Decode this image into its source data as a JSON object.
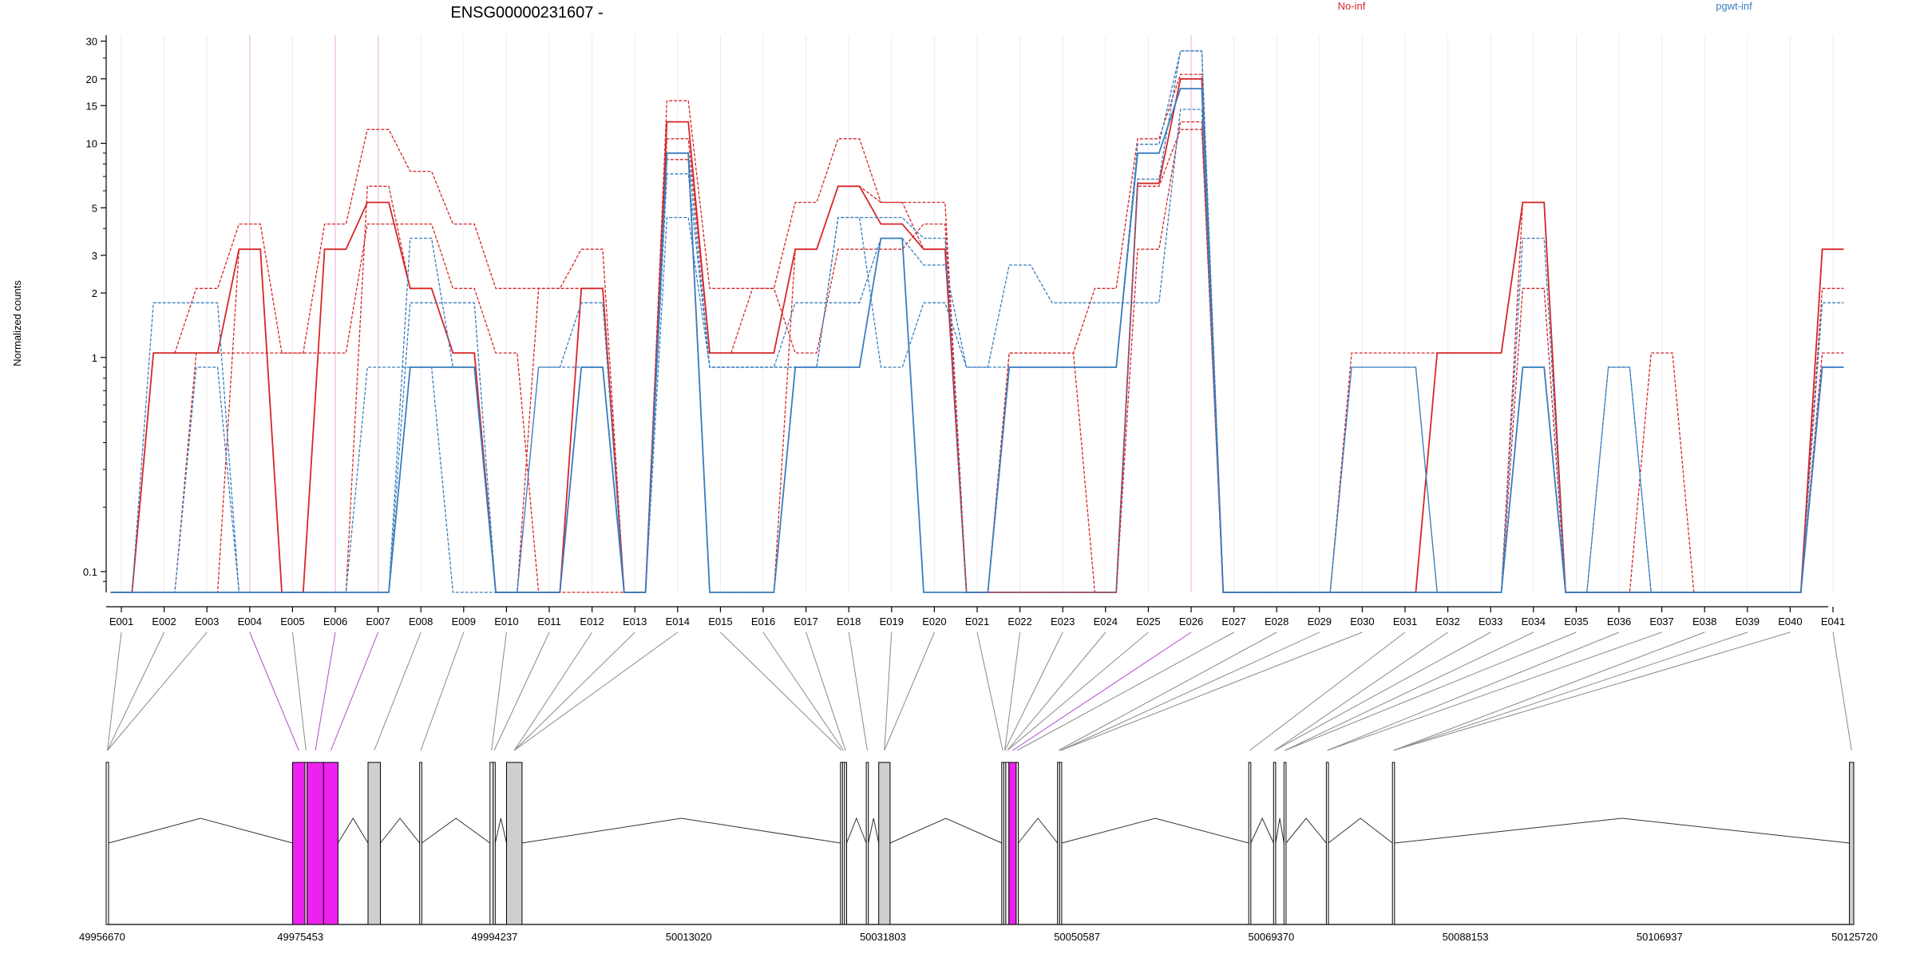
{
  "chart_data": {
    "type": "line",
    "title": "ENSG00000231607 -",
    "ylabel": "Normalized counts",
    "yscale": "log",
    "ylim": [
      0.08,
      32
    ],
    "yticks": [
      0.1,
      1,
      2,
      3,
      5,
      10,
      15,
      20,
      30
    ],
    "legend": [
      {
        "name": "No-inf",
        "color": "#d62728",
        "placement": "top-right"
      },
      {
        "name": "pgwt-inf",
        "color": "#3a7ebf",
        "placement": "top-right"
      }
    ],
    "categories": [
      "E001",
      "E002",
      "E003",
      "E004",
      "E005",
      "E006",
      "E007",
      "E008",
      "E009",
      "E010",
      "E011",
      "E012",
      "E013",
      "E014",
      "E015",
      "E016",
      "E017",
      "E018",
      "E019",
      "E020",
      "E021",
      "E022",
      "E023",
      "E024",
      "E025",
      "E026",
      "E027",
      "E028",
      "E029",
      "E030",
      "E031",
      "E032",
      "E033",
      "E034",
      "E035",
      "E036",
      "E037",
      "E038",
      "E039",
      "E040",
      "E041"
    ],
    "series": [
      {
        "group": "No-inf",
        "style": "solid",
        "values": [
          0.08,
          1.05,
          1.05,
          3.2,
          0.08,
          3.2,
          5.3,
          2.1,
          1.05,
          0.08,
          0.08,
          2.1,
          0.08,
          12.6,
          1.05,
          1.05,
          3.2,
          6.3,
          4.2,
          3.2,
          0.08,
          0.08,
          0.08,
          0.08,
          6.5,
          20,
          0.08,
          0.08,
          0.08,
          0.08,
          0.08,
          1.05,
          1.05,
          5.3,
          0.08,
          0.08,
          0.08,
          0.08,
          0.08,
          0.08,
          3.2
        ]
      },
      {
        "group": "No-inf",
        "style": "dashed",
        "values": [
          0.08,
          1.05,
          2.1,
          4.2,
          1.05,
          4.2,
          11.6,
          7.4,
          4.2,
          2.1,
          2.1,
          2.1,
          0.08,
          15.8,
          2.1,
          2.1,
          5.3,
          10.5,
          5.3,
          5.3,
          0.08,
          1.05,
          1.05,
          2.1,
          10.5,
          21,
          0.08,
          0.08,
          0.08,
          1.05,
          1.05,
          1.05,
          1.05,
          5.3,
          0.08,
          0.08,
          1.05,
          0.08,
          0.08,
          0.08,
          3.2
        ]
      },
      {
        "group": "No-inf",
        "style": "dashed",
        "values": [
          0.08,
          0.08,
          1.05,
          1.05,
          1.05,
          1.05,
          4.2,
          4.2,
          2.1,
          1.05,
          0.08,
          0.08,
          0.08,
          10.5,
          1.05,
          2.1,
          1.05,
          3.2,
          3.2,
          4.2,
          0.08,
          0.08,
          0.08,
          0.08,
          3.2,
          12.6,
          0.08,
          0.08,
          0.08,
          0.08,
          0.08,
          0.08,
          0.08,
          2.1,
          0.08,
          0.08,
          0.08,
          0.08,
          0.08,
          0.08,
          2.1
        ]
      },
      {
        "group": "No-inf",
        "style": "dashed",
        "values": [
          0.08,
          0.08,
          0.08,
          3.2,
          0.08,
          0.08,
          6.3,
          2.1,
          1.05,
          0.08,
          2.1,
          3.2,
          0.08,
          8.4,
          0.08,
          0.08,
          3.2,
          6.3,
          5.3,
          3.2,
          0.08,
          1.05,
          1.05,
          0.08,
          6.3,
          11.6,
          0.08,
          0.08,
          0.08,
          0.08,
          0.08,
          0.08,
          0.08,
          5.3,
          0.08,
          0.08,
          0.08,
          0.08,
          0.08,
          0.08,
          1.05
        ]
      },
      {
        "group": "pgwt-inf",
        "style": "solid",
        "values": [
          0.08,
          0.08,
          0.08,
          0.08,
          0.08,
          0.08,
          0.08,
          0.9,
          0.9,
          0.08,
          0.08,
          0.9,
          0.08,
          9.0,
          0.08,
          0.08,
          0.9,
          0.9,
          3.6,
          0.08,
          0.08,
          0.9,
          0.9,
          0.9,
          9.0,
          18.0,
          0.08,
          0.08,
          0.08,
          0.08,
          0.08,
          0.08,
          0.08,
          0.9,
          0.08,
          0.08,
          0.08,
          0.08,
          0.08,
          0.08,
          0.9
        ]
      },
      {
        "group": "pgwt-inf",
        "style": "dashed",
        "values": [
          0.08,
          1.8,
          1.8,
          0.08,
          0.08,
          0.08,
          0.08,
          1.8,
          1.8,
          0.08,
          0.9,
          1.8,
          0.08,
          7.2,
          0.9,
          0.9,
          1.8,
          1.8,
          3.6,
          2.7,
          0.9,
          0.9,
          0.9,
          0.9,
          9.9,
          27.0,
          0.08,
          0.08,
          0.08,
          0.9,
          0.9,
          0.08,
          0.08,
          3.6,
          0.08,
          0.9,
          0.08,
          0.08,
          0.08,
          0.08,
          1.8
        ]
      },
      {
        "group": "pgwt-inf",
        "style": "dashed",
        "values": [
          0.08,
          0.08,
          0.9,
          0.08,
          0.08,
          0.08,
          0.9,
          0.9,
          0.08,
          0.08,
          0.9,
          0.9,
          0.08,
          4.5,
          0.9,
          0.9,
          0.9,
          4.5,
          0.9,
          1.8,
          0.9,
          2.7,
          1.8,
          1.8,
          1.8,
          14.4,
          0.08,
          0.08,
          0.08,
          0.9,
          0.9,
          0.08,
          0.08,
          0.9,
          0.08,
          0.9,
          0.08,
          0.08,
          0.08,
          0.08,
          0.9
        ]
      },
      {
        "group": "pgwt-inf",
        "style": "dashed",
        "values": [
          0.08,
          0.08,
          0.08,
          0.08,
          0.08,
          0.08,
          0.08,
          3.6,
          0.9,
          0.08,
          0.08,
          0.9,
          0.08,
          9.0,
          0.9,
          0.9,
          0.9,
          4.5,
          4.5,
          3.6,
          0.08,
          0.08,
          0.08,
          0.08,
          6.8,
          27.0,
          0.08,
          0.08,
          0.08,
          0.08,
          0.08,
          0.08,
          0.08,
          0.9,
          0.08,
          0.08,
          0.08,
          0.08,
          0.08,
          0.08,
          0.9
        ]
      }
    ],
    "highlight_exons": [
      "E004",
      "E006",
      "E007",
      "E026"
    ],
    "gene_model": {
      "coord_ticks": [
        "49956670",
        "49975453",
        "49994237",
        "50013020",
        "50031803",
        "50050587",
        "50069370",
        "50088153",
        "50106937",
        "50125720"
      ],
      "exons_pos": [
        {
          "id": "E001",
          "start": 49956670,
          "end": 49956900
        },
        {
          "id": "E004",
          "start": 49974700,
          "end": 49975900
        },
        {
          "id": "E005",
          "start": 49975900,
          "end": 49976100
        },
        {
          "id": "E006",
          "start": 49976100,
          "end": 49977700
        },
        {
          "id": "E007",
          "start": 49977700,
          "end": 49979100
        },
        {
          "id": "E008",
          "start": 49982000,
          "end": 49983200
        },
        {
          "id": "E009",
          "start": 49987000,
          "end": 49987200
        },
        {
          "id": "E010",
          "start": 49993800,
          "end": 49994100
        },
        {
          "id": "E011",
          "start": 49994100,
          "end": 49994300
        },
        {
          "id": "E012",
          "start": 49995400,
          "end": 49996900
        },
        {
          "id": "E015",
          "start": 50027700,
          "end": 50027900
        },
        {
          "id": "E016",
          "start": 50027900,
          "end": 50028100
        },
        {
          "id": "E017",
          "start": 50028100,
          "end": 50028300
        },
        {
          "id": "E018",
          "start": 50030200,
          "end": 50030400
        },
        {
          "id": "E019",
          "start": 50031400,
          "end": 50032500
        },
        {
          "id": "E021",
          "start": 50043300,
          "end": 50043500
        },
        {
          "id": "E022",
          "start": 50043500,
          "end": 50043700
        },
        {
          "id": "E024",
          "start": 50043700,
          "end": 50044000
        },
        {
          "id": "E026",
          "start": 50044000,
          "end": 50044700
        },
        {
          "id": "E027",
          "start": 50044700,
          "end": 50044900
        },
        {
          "id": "E028",
          "start": 50048700,
          "end": 50048900
        },
        {
          "id": "E029",
          "start": 50048900,
          "end": 50049100
        },
        {
          "id": "E031",
          "start": 50067200,
          "end": 50067400
        },
        {
          "id": "E032",
          "start": 50069600,
          "end": 50069800
        },
        {
          "id": "E034",
          "start": 50070600,
          "end": 50070800
        },
        {
          "id": "E036",
          "start": 50074700,
          "end": 50074900
        },
        {
          "id": "E038",
          "start": 50081100,
          "end": 50081300
        },
        {
          "id": "E041",
          "start": 50125300,
          "end": 50125720
        }
      ]
    }
  }
}
